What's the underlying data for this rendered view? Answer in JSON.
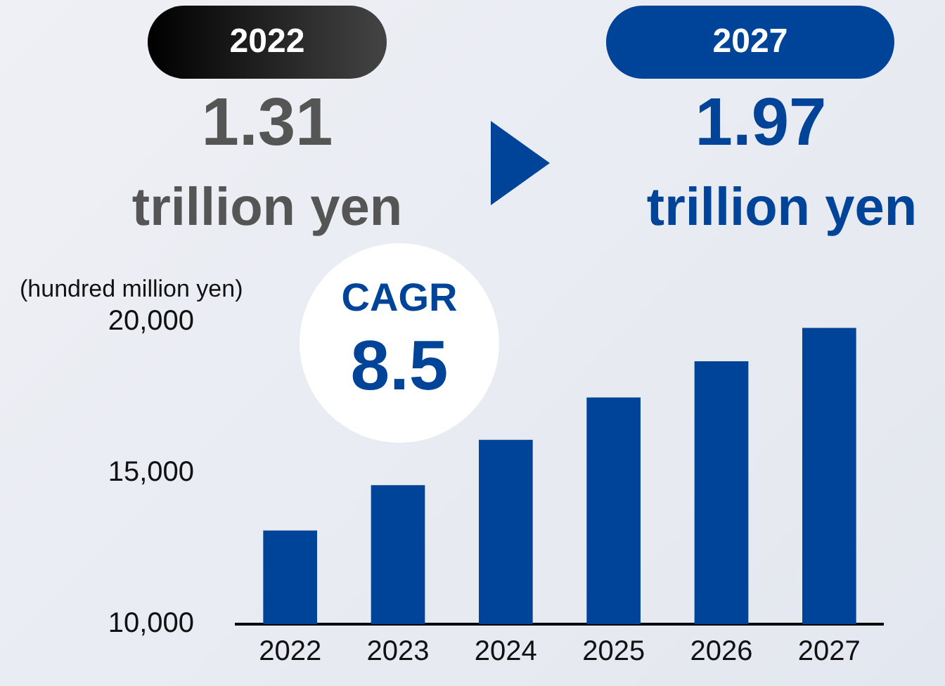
{
  "chart_data": {
    "type": "bar",
    "ylabel": "(hundred million yen)",
    "categories": [
      "2022",
      "2023",
      "2024",
      "2025",
      "2026",
      "2027"
    ],
    "values": [
      13100,
      14600,
      16100,
      17500,
      18700,
      19800
    ],
    "color": "#00449a",
    "ylim": [
      10000,
      20000
    ],
    "yticks": [
      {
        "value": 10000,
        "label": "10,000"
      },
      {
        "value": 15000,
        "label": "15,000"
      },
      {
        "value": 20000,
        "label": "20,000"
      }
    ],
    "grid": false,
    "legend": false,
    "annotations": [
      "2022",
      "1.31",
      "trillion yen",
      "2027",
      "1.97",
      "trillion yen",
      "CAGR",
      "8.5"
    ]
  }
}
